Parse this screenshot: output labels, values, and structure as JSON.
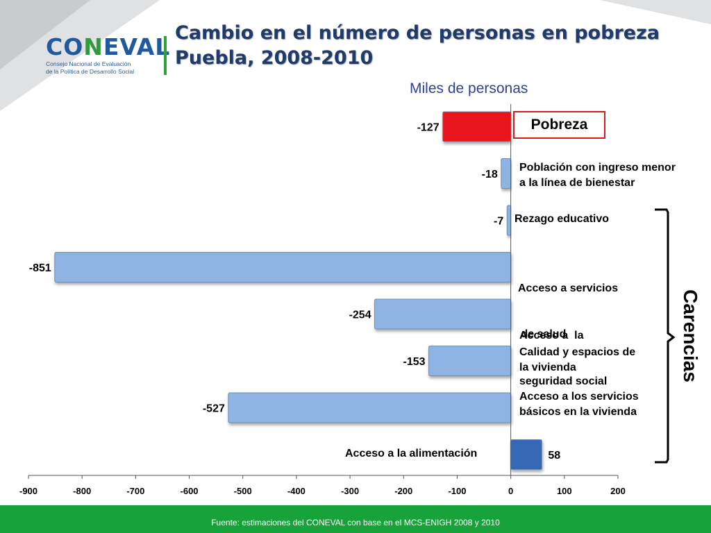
{
  "header": {
    "title_line1": "Cambio en el número de personas en pobreza",
    "title_line2": "Puebla, 2008-2010"
  },
  "logo": {
    "word_left": "CO",
    "word_mid": "N",
    "word_right": "EVAL",
    "sub_line1": "Consejo Nacional de Evaluación",
    "sub_line2": "de la Política de Desarrollo Social"
  },
  "chart_data": {
    "type": "bar",
    "orientation": "horizontal",
    "unit_label": "Miles de personas",
    "categories": [
      "Pobreza",
      "Población con ingreso menor a la línea de bienestar",
      "Rezago educativo",
      "Acceso a servicios de salud",
      "Acceso a la seguridad social",
      "Calidad y espacios de la vivienda",
      "Acceso a los servicios básicos en la vivienda",
      "Acceso a la alimentación"
    ],
    "values": [
      -127,
      -18,
      -7,
      -851,
      -254,
      -153,
      -527,
      58
    ],
    "bar_colors": [
      "#e8161b",
      "#8db4e3",
      "#8db4e3",
      "#8db4e3",
      "#8db4e3",
      "#8db4e3",
      "#8db4e3",
      "#3568b5"
    ],
    "xlim": [
      -900,
      200
    ],
    "xticks": [
      "-900",
      "-800",
      "-700",
      "-600",
      "-500",
      "-400",
      "-300",
      "-200",
      "-100",
      "0",
      "100",
      "200"
    ],
    "group_label": "Carencias",
    "grid": false,
    "legend": "none"
  },
  "labels": {
    "pobreza": "Pobreza",
    "ingreso_l1": "Población con ingreso menor",
    "ingreso_l2": "a la línea de bienestar",
    "rezago": "Rezago educativo",
    "salud_l1": "Acceso a servicios",
    "salud_l2": " de salud",
    "seguridad_l1": "Acceso a  la",
    "seguridad_l2": "seguridad social",
    "vivienda_l1": "Calidad y espacios de",
    "vivienda_l2": "la vivienda",
    "basicos_l1": "Acceso a los servicios",
    "basicos_l2": "básicos en la vivienda",
    "alimentacion": "Acceso a la alimentación"
  },
  "footer": {
    "source": "Fuente: estimaciones del CONEVAL con base en el MCS-ENIGH 2008 y 2010"
  }
}
